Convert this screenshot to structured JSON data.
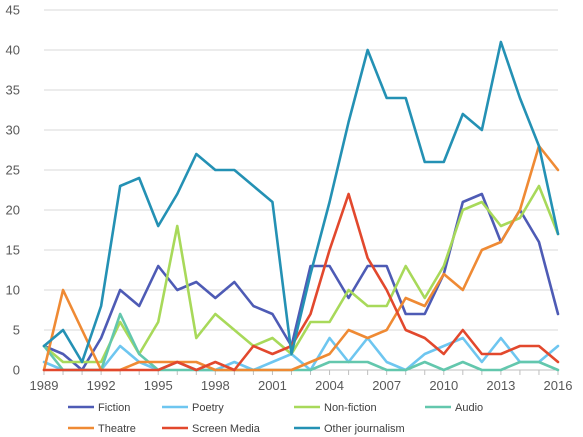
{
  "chart_data": {
    "type": "line",
    "x": [
      1989,
      1990,
      1991,
      1992,
      1993,
      1994,
      1995,
      1996,
      1997,
      1998,
      1999,
      2000,
      2001,
      2002,
      2003,
      2004,
      2005,
      2006,
      2007,
      2008,
      2009,
      2010,
      2011,
      2012,
      2013,
      2014,
      2015,
      2016
    ],
    "x_tick_labels": [
      "1989",
      "1992",
      "1995",
      "1998",
      "2001",
      "2004",
      "2007",
      "2010",
      "2013",
      "2016"
    ],
    "ylim": [
      0,
      45
    ],
    "y_ticks": [
      0,
      5,
      10,
      15,
      20,
      25,
      30,
      35,
      40,
      45
    ],
    "grid": true,
    "legend_position": "bottom",
    "series": [
      {
        "name": "Fiction",
        "color": "#4e5bb5",
        "values": [
          3,
          2,
          0,
          4,
          10,
          8,
          13,
          10,
          11,
          9,
          11,
          8,
          7,
          3,
          13,
          13,
          9,
          13,
          13,
          7,
          7,
          12,
          21,
          22,
          16,
          20,
          16,
          7
        ]
      },
      {
        "name": "Poetry",
        "color": "#6ec6f0",
        "values": [
          1,
          0,
          0,
          0,
          3,
          1,
          0,
          1,
          0,
          0,
          1,
          0,
          1,
          2,
          0,
          4,
          1,
          4,
          1,
          0,
          2,
          3,
          4,
          1,
          4,
          1,
          1,
          3
        ]
      },
      {
        "name": "Non-fiction",
        "color": "#a8d95a",
        "values": [
          3,
          1,
          1,
          1,
          6,
          2,
          6,
          18,
          4,
          7,
          5,
          3,
          4,
          2,
          6,
          6,
          10,
          8,
          8,
          13,
          9,
          13,
          20,
          21,
          18,
          19,
          23,
          17
        ]
      },
      {
        "name": "Audio",
        "color": "#63c7ad",
        "values": [
          3,
          0,
          0,
          0,
          7,
          2,
          0,
          0,
          0,
          0,
          0,
          0,
          0,
          0,
          0,
          1,
          1,
          1,
          0,
          0,
          1,
          0,
          1,
          0,
          0,
          1,
          1,
          0
        ]
      },
      {
        "name": "Theatre",
        "color": "#ef8a34",
        "values": [
          0,
          10,
          5,
          0,
          0,
          1,
          1,
          1,
          1,
          0,
          0,
          0,
          0,
          0,
          1,
          2,
          5,
          4,
          5,
          9,
          8,
          12,
          10,
          15,
          16,
          20,
          28,
          25
        ]
      },
      {
        "name": "Screen Media",
        "color": "#e2482d",
        "values": [
          0,
          0,
          0,
          0,
          0,
          0,
          0,
          1,
          0,
          1,
          0,
          3,
          2,
          3,
          7,
          15,
          22,
          14,
          10,
          5,
          4,
          2,
          5,
          2,
          2,
          3,
          3,
          1
        ]
      },
      {
        "name": "Other journalism",
        "color": "#2491b4",
        "values": [
          3,
          5,
          1,
          8,
          23,
          24,
          18,
          22,
          27,
          25,
          25,
          23,
          21,
          2,
          12,
          21,
          31,
          40,
          34,
          34,
          26,
          26,
          32,
          30,
          41,
          34,
          28,
          17
        ]
      }
    ]
  }
}
